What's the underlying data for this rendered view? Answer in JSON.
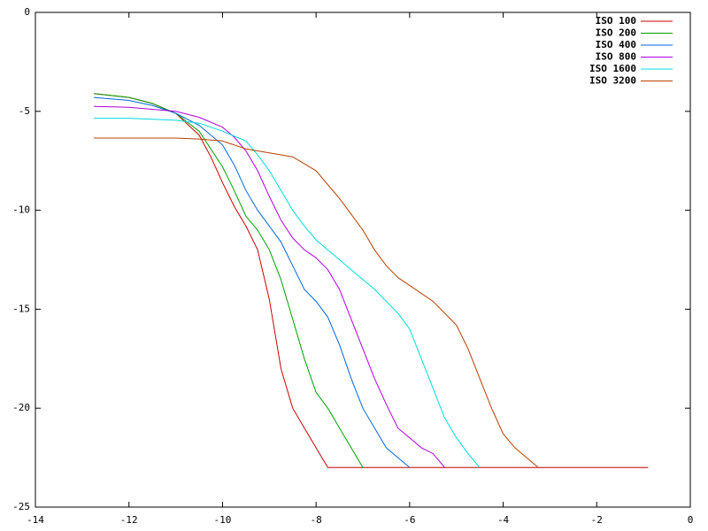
{
  "chart_data": {
    "type": "line",
    "xlim": [
      -14,
      0
    ],
    "xticks": [
      -14,
      -12,
      -10,
      -8,
      -6,
      -4,
      -2,
      0
    ],
    "ylim": [
      -25,
      0
    ],
    "yticks": [
      -25,
      -20,
      -15,
      -10,
      -5,
      0
    ],
    "legend": "top-right",
    "series": [
      {
        "name": "ISO 100",
        "color": "#cc0000",
        "x": [
          -12.75,
          -12,
          -11.5,
          -11,
          -10.5,
          -10.25,
          -10,
          -9.75,
          -9.5,
          -9.25,
          -9,
          -8.75,
          -8.5,
          -8.25,
          -8,
          -7.75,
          -0.9
        ],
        "values": [
          -4.1,
          -4.3,
          -4.6,
          -5.1,
          -6.2,
          -7.3,
          -8.6,
          -9.8,
          -10.8,
          -12,
          -14.5,
          -18,
          -20,
          -21,
          -22,
          -23,
          -23
        ]
      },
      {
        "name": "ISO 200",
        "color": "#00a000",
        "x": [
          -12.75,
          -12,
          -11.5,
          -11,
          -10.5,
          -10,
          -9.75,
          -9.5,
          -9.25,
          -9,
          -8.75,
          -8.5,
          -8.25,
          -8,
          -7.75,
          -7.5,
          -7.25,
          -7
        ],
        "values": [
          -4.1,
          -4.3,
          -4.6,
          -5.1,
          -6,
          -7.8,
          -9,
          -10.3,
          -11,
          -12,
          -13.5,
          -15.5,
          -17.5,
          -19.2,
          -20,
          -21,
          -22,
          -23
        ]
      },
      {
        "name": "ISO 400",
        "color": "#0066dd",
        "x": [
          -12.75,
          -12,
          -11.5,
          -11,
          -10.5,
          -10,
          -9.75,
          -9.5,
          -9.25,
          -9,
          -8.75,
          -8.5,
          -8.25,
          -8,
          -7.75,
          -7.5,
          -7.25,
          -7,
          -6.75,
          -6.5,
          -6.25,
          -6
        ],
        "values": [
          -4.3,
          -4.45,
          -4.7,
          -5.1,
          -5.7,
          -6.7,
          -7.7,
          -9,
          -10,
          -10.8,
          -11.6,
          -12.8,
          -14,
          -14.6,
          -15.4,
          -16.8,
          -18.5,
          -20,
          -21,
          -22,
          -22.5,
          -23
        ]
      },
      {
        "name": "ISO 800",
        "color": "#b000e0",
        "x": [
          -12.75,
          -12,
          -11,
          -10.5,
          -10,
          -9.75,
          -9.5,
          -9.25,
          -9,
          -8.75,
          -8.5,
          -8.25,
          -8,
          -7.75,
          -7.5,
          -7.25,
          -7,
          -6.75,
          -6.5,
          -6.25,
          -6,
          -5.75,
          -5.5,
          -5.25
        ],
        "values": [
          -4.75,
          -4.8,
          -5,
          -5.3,
          -5.8,
          -6.3,
          -7,
          -8,
          -9.3,
          -10.5,
          -11.4,
          -12,
          -12.4,
          -13,
          -14,
          -15.5,
          -17,
          -18.5,
          -19.8,
          -21,
          -21.5,
          -22,
          -22.3,
          -23
        ]
      },
      {
        "name": "ISO 1600",
        "color": "#00dddd",
        "x": [
          -12.75,
          -12,
          -11,
          -10.5,
          -10,
          -9.5,
          -9.25,
          -9,
          -8.75,
          -8.5,
          -8.25,
          -8,
          -7.75,
          -7.5,
          -7.25,
          -7,
          -6.75,
          -6.5,
          -6.25,
          -6,
          -5.75,
          -5.5,
          -5.25,
          -5,
          -4.75,
          -4.5
        ],
        "values": [
          -5.35,
          -5.35,
          -5.45,
          -5.6,
          -6,
          -6.5,
          -7.2,
          -8,
          -9,
          -10,
          -10.8,
          -11.5,
          -12,
          -12.5,
          -13,
          -13.5,
          -14,
          -14.6,
          -15.2,
          -16,
          -17.5,
          -19,
          -20.5,
          -21.5,
          -22.3,
          -23
        ]
      },
      {
        "name": "ISO 3200",
        "color": "#b84000",
        "x": [
          -12.75,
          -11,
          -10.5,
          -10,
          -9.5,
          -9,
          -8.5,
          -8,
          -7.5,
          -7,
          -6.75,
          -6.5,
          -6.25,
          -6,
          -5.5,
          -5,
          -4.75,
          -4.5,
          -4.25,
          -4,
          -3.75,
          -3.5,
          -3.25
        ],
        "values": [
          -6.35,
          -6.35,
          -6.4,
          -6.5,
          -6.9,
          -7.1,
          -7.3,
          -8,
          -9.4,
          -11,
          -12,
          -12.8,
          -13.4,
          -13.8,
          -14.6,
          -15.8,
          -17,
          -18.5,
          -20,
          -21.3,
          -22,
          -22.5,
          -23
        ]
      }
    ]
  }
}
